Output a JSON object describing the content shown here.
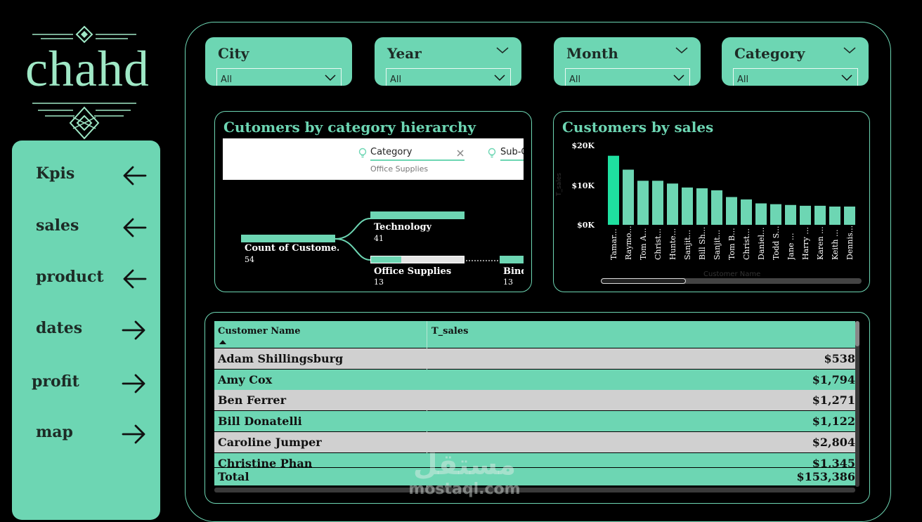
{
  "logo": {
    "text": "chahd"
  },
  "sidebar": {
    "items": [
      {
        "label": "Kpis",
        "arrow": "arrow-left"
      },
      {
        "label": "sales",
        "arrow": "arrow-left"
      },
      {
        "label": "product",
        "arrow": "arrow-left"
      },
      {
        "label": "dates",
        "arrow": "arrow-right"
      },
      {
        "label": "profit",
        "arrow": "arrow-right"
      },
      {
        "label": "map",
        "arrow": "arrow-right"
      }
    ]
  },
  "filters": [
    {
      "title": "City",
      "value": "All",
      "has_header_chevron": false
    },
    {
      "title": "Year",
      "value": "All",
      "has_header_chevron": true
    },
    {
      "title": "Month",
      "value": "All",
      "has_header_chevron": true
    },
    {
      "title": "Category",
      "value": "All",
      "has_header_chevron": true
    }
  ],
  "decomp": {
    "title": "Cutomers by category hierarchy",
    "toolbar": {
      "level1_label": "Category",
      "level1_value": "Office Supplies",
      "level2_label": "Sub-C"
    },
    "root": {
      "label": "Count of Custome...",
      "count": "54"
    },
    "nodes": [
      {
        "label": "Technology",
        "count": "41"
      },
      {
        "label": "Office Supplies",
        "count": "13"
      }
    ],
    "leaf": {
      "label": "Bind",
      "count": "13"
    }
  },
  "sales_chart": {
    "title": "Customers by sales",
    "ylabel": "T_sales",
    "xlabel": "Customer Name",
    "y_ticks": [
      "$20K",
      "$10K",
      "$0K"
    ]
  },
  "chart_data": {
    "type": "bar",
    "title": "Customers by sales",
    "xlabel": "Customer Name",
    "ylabel": "T_sales",
    "ylim": [
      0,
      20000
    ],
    "categories": [
      "Tamar...",
      "Raymo...",
      "Tom A...",
      "Christ...",
      "Hunte...",
      "Sanjit...",
      "Bill Sh...",
      "Sanjit...",
      "Tom B...",
      "Christ...",
      "Daniel...",
      "Todd S...",
      "Jane ...",
      "Harry ...",
      "Karen ...",
      "Keith ...",
      "Dennis..."
    ],
    "values": [
      17400,
      13900,
      11100,
      11100,
      10400,
      9400,
      9200,
      8700,
      7000,
      6400,
      5400,
      5200,
      5000,
      4800,
      4800,
      4600,
      4600
    ],
    "colors": {
      "first": "#1fe0a0",
      "rest": "#6dd6b3"
    },
    "grid": false
  },
  "table": {
    "headers": {
      "name": "Customer Name",
      "sales": "T_sales"
    },
    "rows": [
      {
        "name": "Adam Shillingsburg",
        "sales": "$538"
      },
      {
        "name": "Amy Cox",
        "sales": "$1,794"
      },
      {
        "name": "Ben Ferrer",
        "sales": "$1,271"
      },
      {
        "name": "Bill Donatelli",
        "sales": "$1,122"
      },
      {
        "name": "Caroline Jumper",
        "sales": "$2,804"
      },
      {
        "name": "Christine Phan",
        "sales": "$1,345"
      }
    ],
    "total": {
      "label": "Total",
      "value": "$153,386"
    }
  },
  "watermark": {
    "arabic": "مستقل",
    "latin": "mostaql.com"
  },
  "colors": {
    "accent": "#6dd6b3",
    "accent_bright": "#1fe0a0",
    "row_alt": "#d0d0d0",
    "background": "#000000"
  }
}
